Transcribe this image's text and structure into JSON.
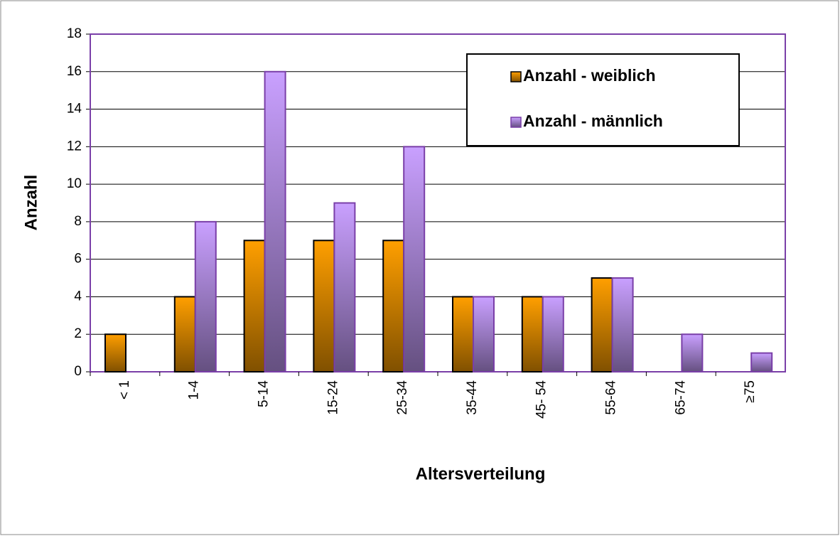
{
  "chart_data": {
    "type": "bar",
    "x_label": "Altersverteilung",
    "y_label": "Anzahl",
    "categories": [
      "< 1",
      "1-4",
      "5-14",
      "15-24",
      "25-34",
      "35-44",
      "45- 54",
      "55-64",
      "65-74",
      "≥75"
    ],
    "series": [
      {
        "name": "Anzahl - weiblich",
        "color": "#ff9f00",
        "values": [
          2,
          4,
          7,
          7,
          7,
          4,
          4,
          5,
          null,
          null
        ]
      },
      {
        "name": "Anzahl - männlich",
        "color": "#c9a0ff",
        "values": [
          null,
          8,
          16,
          9,
          12,
          4,
          4,
          5,
          2,
          1
        ]
      }
    ],
    "ylim": [
      0,
      18
    ],
    "yticks": [
      0,
      2,
      4,
      6,
      8,
      10,
      12,
      14,
      16,
      18
    ],
    "grid": true,
    "legend": "upper right"
  }
}
